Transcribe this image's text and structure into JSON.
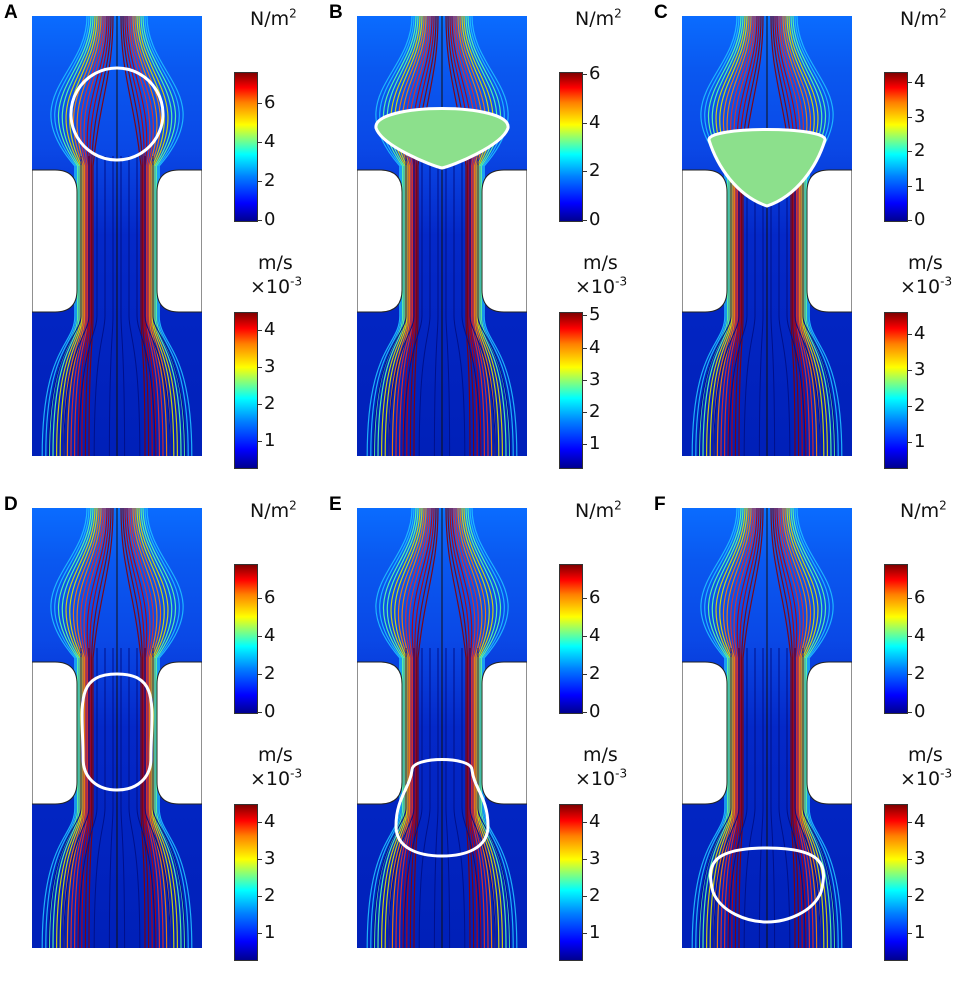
{
  "panels": [
    {
      "label": "A",
      "pressure_unit": "N/m",
      "pressure_exp": "2",
      "pressure_ticks": [
        "6",
        "4",
        "2",
        "0"
      ],
      "pressure_max": 7.6,
      "velocity_unit": "m/s",
      "velocity_scale": "×10",
      "velocity_exp": "-3",
      "velocity_ticks": [
        "4",
        "3",
        "2",
        "1"
      ],
      "velocity_max": 4.5,
      "droplet_shape": "circle",
      "droplet_state": "above constriction"
    },
    {
      "label": "B",
      "pressure_unit": "N/m",
      "pressure_exp": "2",
      "pressure_ticks": [
        "6",
        "4",
        "2",
        "0"
      ],
      "pressure_max": 6.1,
      "velocity_unit": "m/s",
      "velocity_scale": "×10",
      "velocity_exp": "-3",
      "velocity_ticks": [
        "5",
        "4",
        "3",
        "2",
        "1"
      ],
      "velocity_max": 5.1,
      "droplet_shape": "flattened",
      "droplet_state": "entering constriction"
    },
    {
      "label": "C",
      "pressure_unit": "N/m",
      "pressure_exp": "2",
      "pressure_ticks": [
        "4",
        "3",
        "2",
        "1",
        "0"
      ],
      "pressure_max": 4.3,
      "velocity_unit": "m/s",
      "velocity_scale": "×10",
      "velocity_exp": "-3",
      "velocity_ticks": [
        "4",
        "3",
        "2",
        "1"
      ],
      "velocity_max": 4.6,
      "droplet_shape": "funnel",
      "droplet_state": "squeezing into constriction"
    },
    {
      "label": "D",
      "pressure_unit": "N/m",
      "pressure_exp": "2",
      "pressure_ticks": [
        "6",
        "4",
        "2",
        "0"
      ],
      "pressure_max": 7.8,
      "velocity_unit": "m/s",
      "velocity_scale": "×10",
      "velocity_exp": "-3",
      "velocity_ticks": [
        "4",
        "3",
        "2",
        "1"
      ],
      "velocity_max": 4.5,
      "droplet_shape": "elongated",
      "droplet_state": "inside constriction"
    },
    {
      "label": "E",
      "pressure_unit": "N/m",
      "pressure_exp": "2",
      "pressure_ticks": [
        "6",
        "4",
        "2",
        "0"
      ],
      "pressure_max": 7.8,
      "velocity_unit": "m/s",
      "velocity_scale": "×10",
      "velocity_exp": "-3",
      "velocity_ticks": [
        "4",
        "3",
        "2",
        "1"
      ],
      "velocity_max": 4.5,
      "droplet_shape": "exiting",
      "droplet_state": "exiting constriction"
    },
    {
      "label": "F",
      "pressure_unit": "N/m",
      "pressure_exp": "2",
      "pressure_ticks": [
        "6",
        "4",
        "2",
        "0"
      ],
      "pressure_max": 7.8,
      "velocity_unit": "m/s",
      "velocity_scale": "×10",
      "velocity_exp": "-3",
      "velocity_ticks": [
        "4",
        "3",
        "2",
        "1"
      ],
      "velocity_max": 4.5,
      "droplet_shape": "oval",
      "droplet_state": "below constriction"
    }
  ],
  "colors": {
    "pressure_high": "#c80000",
    "velocity_low": "#0020d0",
    "droplet_outline": "#ffffff",
    "droplet_fill": "#8ce08c",
    "wall": "#ffffff"
  }
}
